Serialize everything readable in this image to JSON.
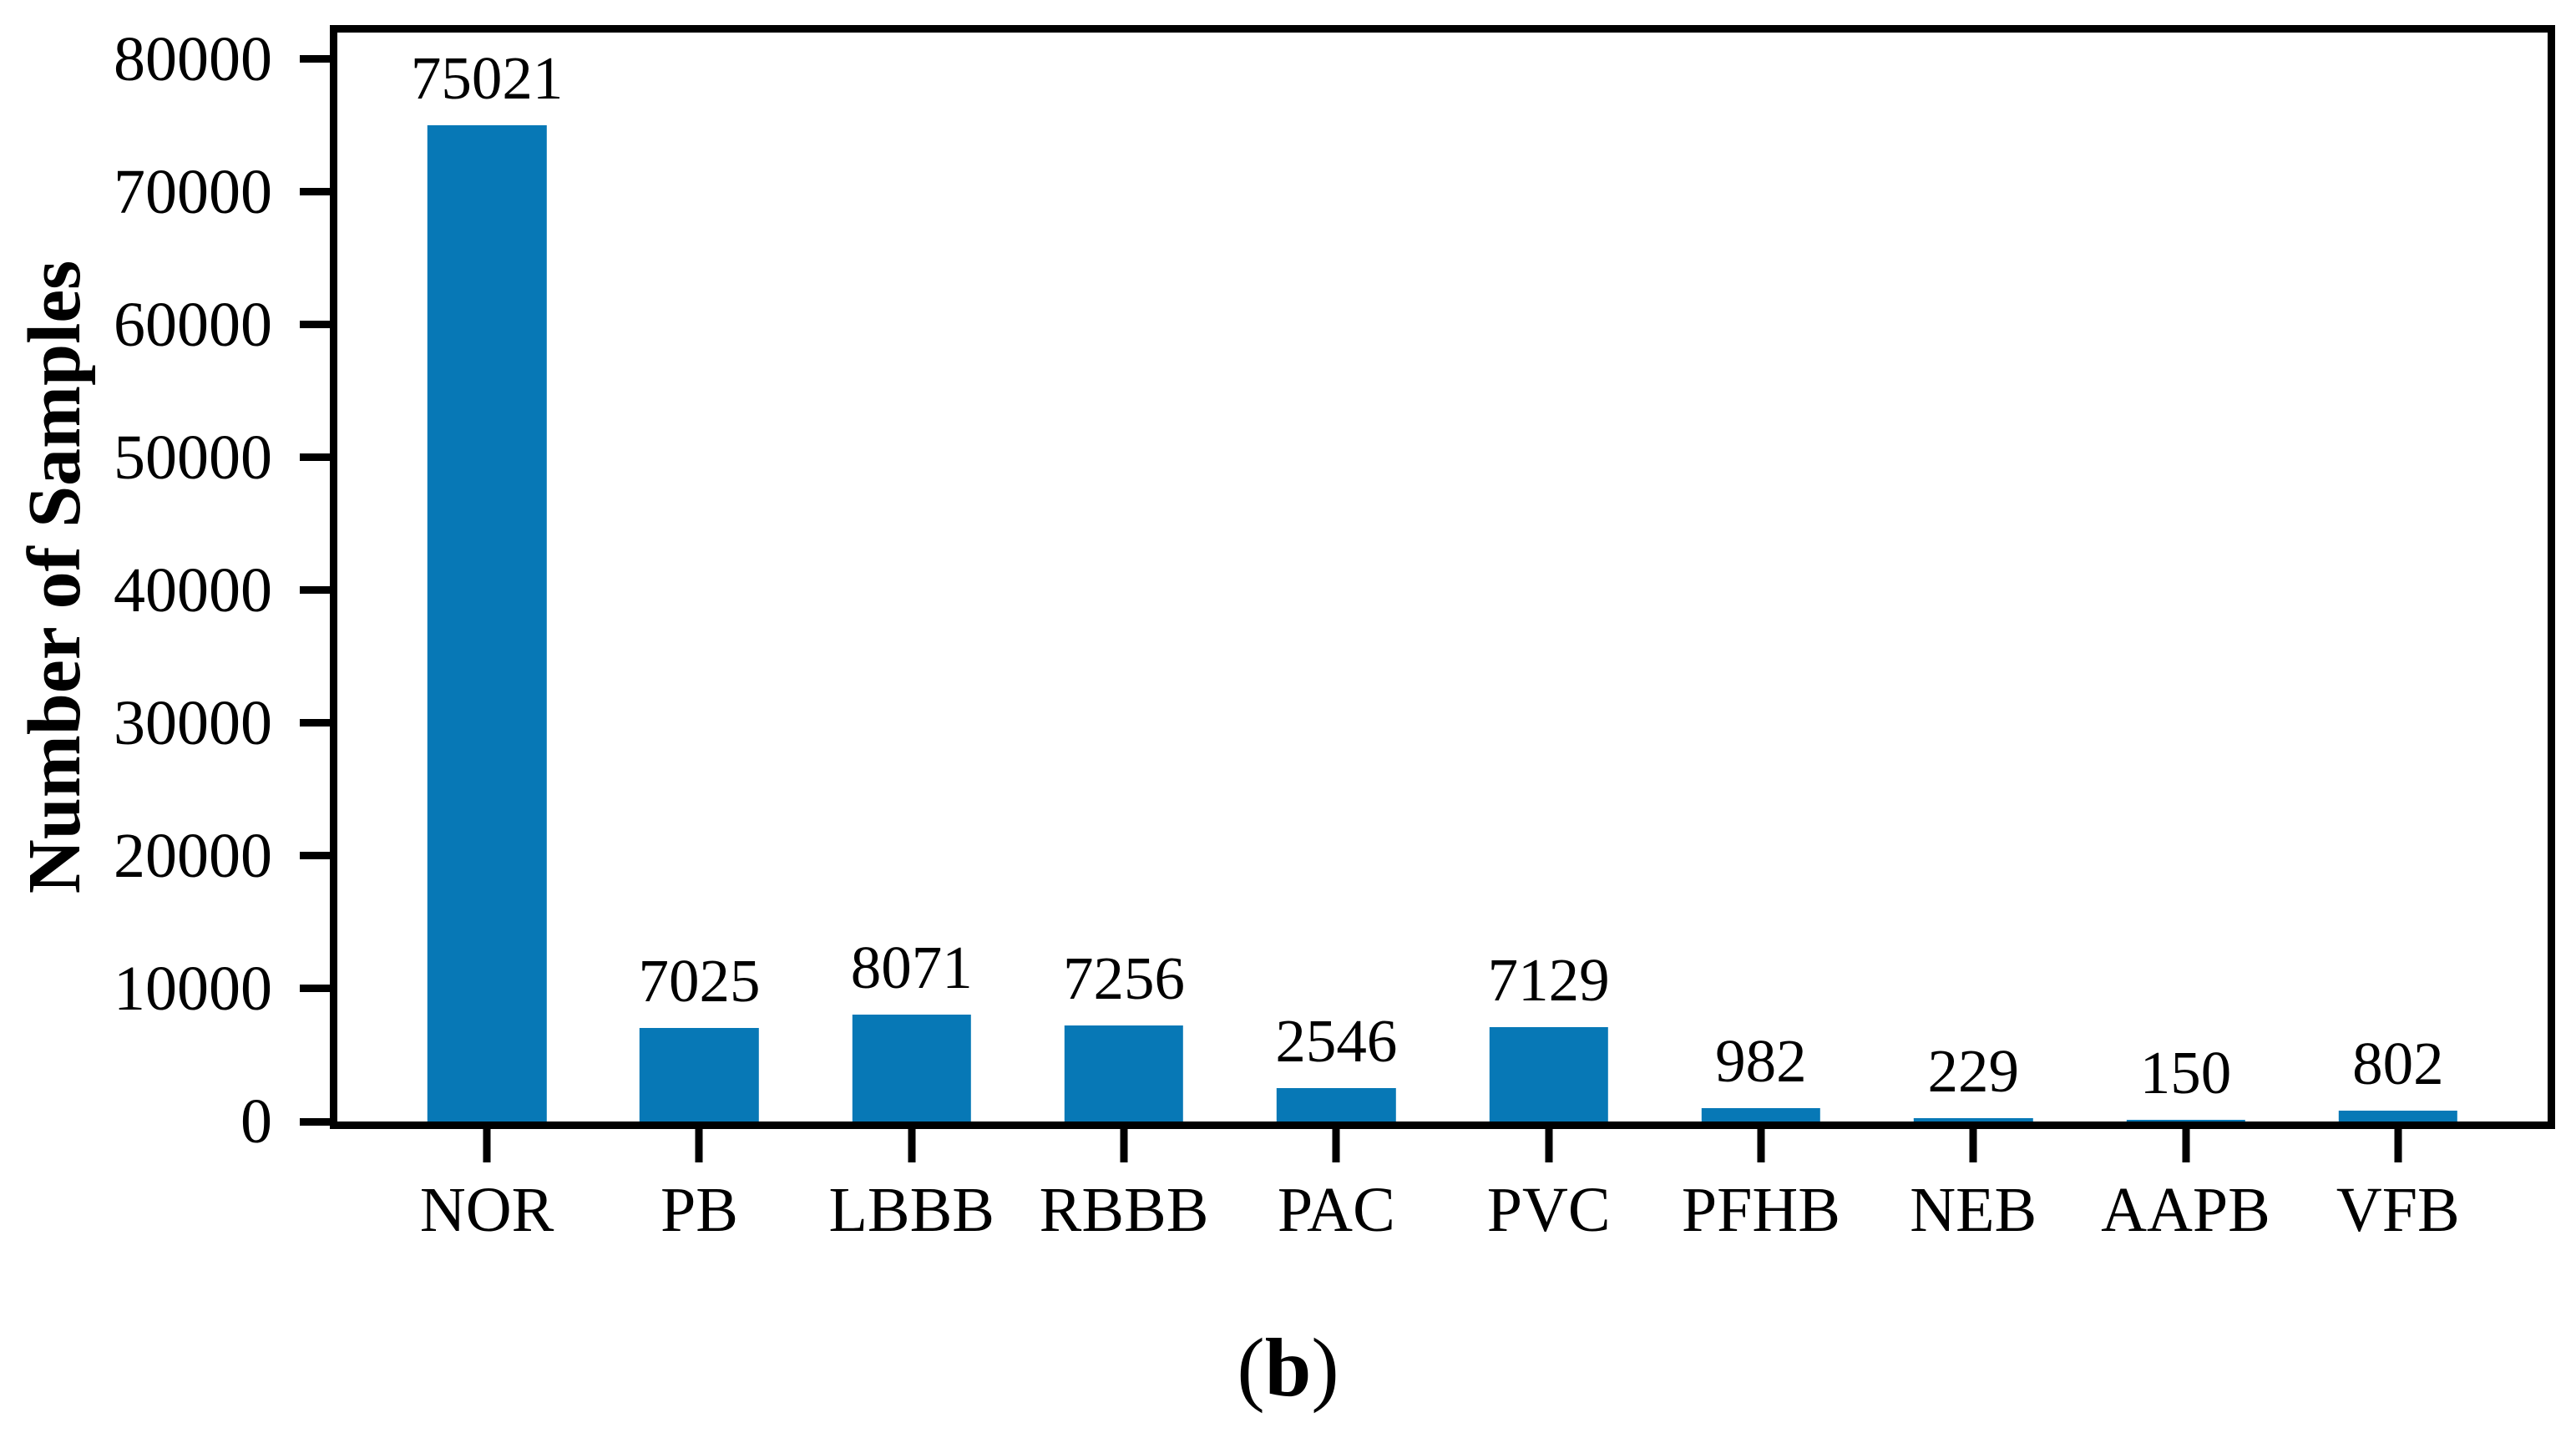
{
  "chart_data": {
    "type": "bar",
    "categories": [
      "NOR",
      "PB",
      "LBBB",
      "RBBB",
      "PAC",
      "PVC",
      "PFHB",
      "NEB",
      "AAPB",
      "VFB"
    ],
    "values": [
      75021,
      7025,
      8071,
      7256,
      2546,
      7129,
      982,
      229,
      150,
      802
    ],
    "title": "",
    "xlabel": "",
    "ylabel": "Number of Samples",
    "ylim": [
      0,
      82000
    ],
    "yticks": [
      0,
      10000,
      20000,
      30000,
      40000,
      50000,
      60000,
      70000,
      80000
    ],
    "grid": false,
    "legend": "none",
    "bar_color": "#0778b6",
    "spine_color": "#000000",
    "value_labels_shown": true,
    "caption": {
      "prefix": "(",
      "letter": "b",
      "suffix": ")"
    }
  }
}
